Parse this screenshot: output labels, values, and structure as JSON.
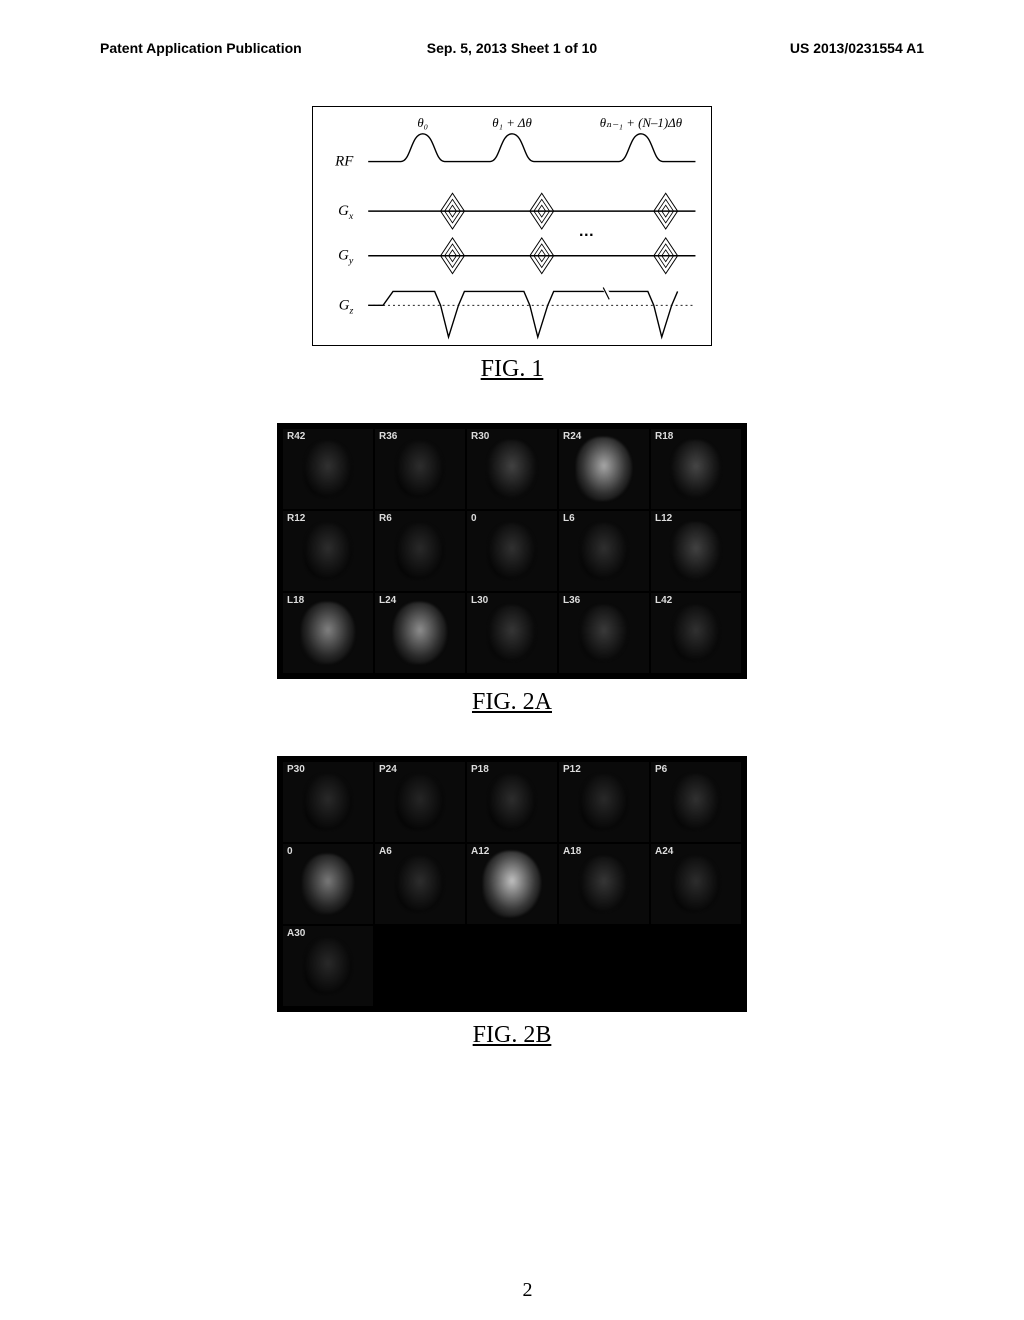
{
  "header": {
    "left": "Patent Application Publication",
    "center": "Sep. 5, 2013  Sheet 1 of 10",
    "right": "US 2013/0231554 A1"
  },
  "figure1": {
    "label": "FIG. 1",
    "row_labels": [
      "RF",
      "Gₓ",
      "Gᵧ",
      "G_z"
    ],
    "pulse_labels": [
      "θ₀",
      "θ₁ + Δθ",
      "θ_{N-1} + (N–1)Δθ"
    ],
    "colors": {
      "stroke": "#000000",
      "bg": "#ffffff"
    },
    "line_width": 1.4
  },
  "figure2a": {
    "label": "FIG. 2A",
    "bg": "#000000",
    "cell_bg": "#0a0a0a",
    "label_color": "#dddddd",
    "slices": [
      {
        "id": "R42",
        "b": 0.14
      },
      {
        "id": "R36",
        "b": 0.12
      },
      {
        "id": "R30",
        "b": 0.22
      },
      {
        "id": "R24",
        "b": 0.7
      },
      {
        "id": "R18",
        "b": 0.24
      },
      {
        "id": "R12",
        "b": 0.12
      },
      {
        "id": "R6",
        "b": 0.1
      },
      {
        "id": "0",
        "b": 0.14
      },
      {
        "id": "L6",
        "b": 0.13
      },
      {
        "id": "L12",
        "b": 0.22
      },
      {
        "id": "L18",
        "b": 0.52
      },
      {
        "id": "L24",
        "b": 0.58
      },
      {
        "id": "L30",
        "b": 0.16
      },
      {
        "id": "L36",
        "b": 0.18
      },
      {
        "id": "L42",
        "b": 0.14
      }
    ],
    "cols": 5
  },
  "figure2b": {
    "label": "FIG. 2B",
    "bg": "#000000",
    "cell_bg": "#0a0a0a",
    "label_color": "#dddddd",
    "slices": [
      {
        "id": "P30",
        "b": 0.1
      },
      {
        "id": "P24",
        "b": 0.08
      },
      {
        "id": "P18",
        "b": 0.12
      },
      {
        "id": "P12",
        "b": 0.1
      },
      {
        "id": "P6",
        "b": 0.14
      },
      {
        "id": "0",
        "b": 0.48
      },
      {
        "id": "A6",
        "b": 0.12
      },
      {
        "id": "A12",
        "b": 0.82
      },
      {
        "id": "A18",
        "b": 0.16
      },
      {
        "id": "A24",
        "b": 0.12
      },
      {
        "id": "A30",
        "b": 0.1
      }
    ],
    "cols": 5
  },
  "page_number": "2"
}
